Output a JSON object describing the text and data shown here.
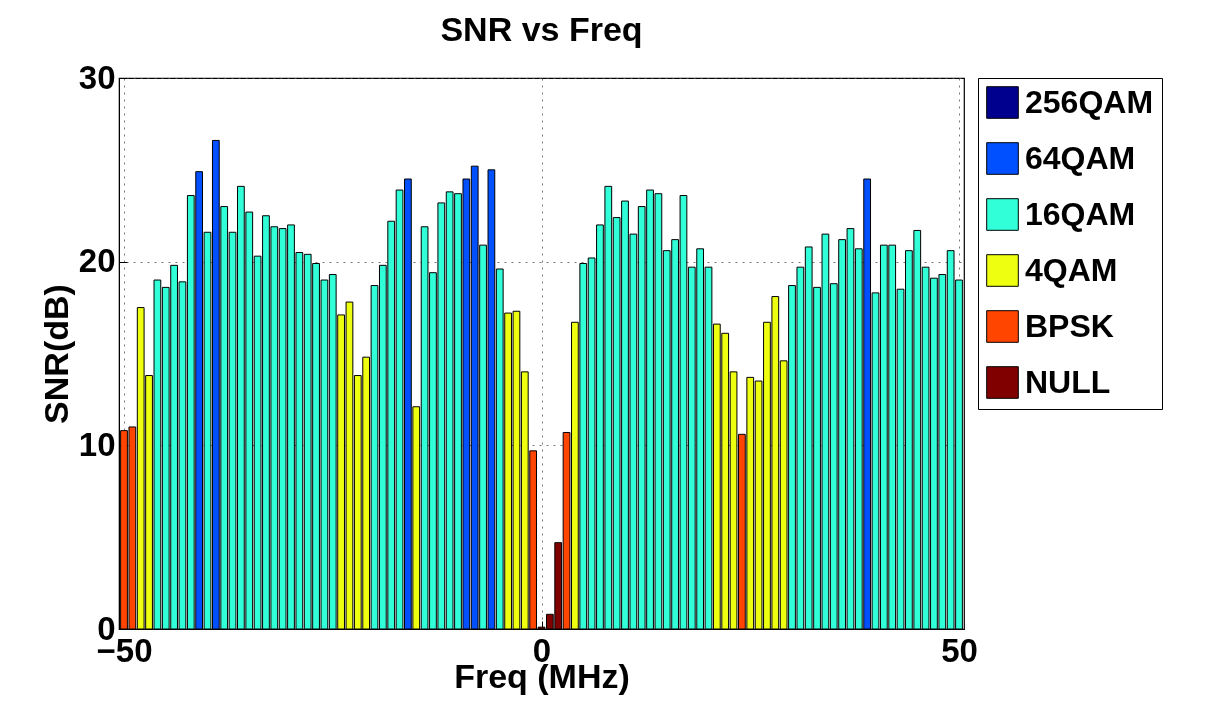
{
  "chart_data": {
    "type": "bar",
    "title": "SNR vs Freq",
    "xlabel": "Freq (MHz)",
    "ylabel": "SNR(dB)",
    "xlim": [
      -50,
      50
    ],
    "xticks": [
      -50,
      0,
      50
    ],
    "ylim": [
      0,
      30
    ],
    "yticks": [
      0,
      10,
      20,
      30
    ],
    "grid": true,
    "legend": "right",
    "series": [
      {
        "name": "256QAM",
        "color": "#00008f"
      },
      {
        "name": "64QAM",
        "color": "#0050ff",
        "x": [
          -41,
          -39,
          -16,
          -9,
          -8,
          -6,
          39
        ],
        "values": [
          24.9,
          26.6,
          24.5,
          24.5,
          25.2,
          25.0,
          24.5
        ]
      },
      {
        "name": "16QAM",
        "color": "#30ffd8",
        "x": [
          -46,
          -45,
          -44,
          -43,
          -42,
          -40,
          -38,
          -37,
          -36,
          -35,
          -34,
          -33,
          -32,
          -31,
          -30,
          -29,
          -28,
          -27,
          -26,
          -25,
          -20,
          -19,
          -18,
          -17,
          -14,
          -13,
          -12,
          -11,
          -10,
          -7,
          -5,
          5,
          6,
          7,
          8,
          9,
          10,
          11,
          12,
          13,
          14,
          15,
          16,
          17,
          18,
          19,
          20,
          30,
          31,
          32,
          33,
          34,
          35,
          36,
          37,
          38,
          40,
          41,
          42,
          43,
          44,
          45,
          46,
          47,
          48,
          49,
          50
        ],
        "values": [
          19.0,
          18.6,
          19.8,
          18.9,
          23.6,
          21.6,
          23.0,
          21.6,
          24.1,
          22.7,
          20.3,
          22.5,
          21.9,
          21.8,
          22.0,
          20.5,
          20.4,
          19.9,
          19.0,
          19.3,
          18.7,
          19.8,
          22.2,
          23.9,
          21.9,
          19.4,
          23.2,
          23.8,
          23.7,
          20.9,
          19.6,
          19.9,
          20.2,
          22.0,
          24.1,
          22.4,
          23.3,
          21.5,
          23.0,
          23.9,
          23.7,
          20.6,
          21.2,
          23.6,
          19.7,
          20.7,
          19.7,
          18.7,
          19.7,
          20.8,
          18.6,
          21.5,
          18.8,
          21.2,
          21.8,
          20.7,
          18.3,
          20.9,
          20.9,
          18.5,
          20.6,
          21.7,
          19.7,
          19.1,
          19.3,
          20.6,
          19.0
        ]
      },
      {
        "name": "4QAM",
        "color": "#eeff10",
        "x": [
          -48,
          -47,
          -24,
          -23,
          -22,
          -21,
          -15,
          -4,
          -3,
          -2,
          4,
          21,
          22,
          23,
          25,
          26,
          27,
          28,
          29
        ],
        "values": [
          17.5,
          13.8,
          17.1,
          17.8,
          13.8,
          14.8,
          12.1,
          17.2,
          17.3,
          14.0,
          16.7,
          16.6,
          16.1,
          14.0,
          13.7,
          13.5,
          16.7,
          18.1,
          14.6
        ]
      },
      {
        "name": "BPSK",
        "color": "#ff4500",
        "x": [
          -50,
          -49,
          -1,
          3,
          24
        ],
        "values": [
          10.8,
          11.0,
          9.7,
          10.7,
          10.6
        ]
      },
      {
        "name": "NULL",
        "color": "#800000",
        "x": [
          0,
          1,
          2
        ],
        "values": [
          0.1,
          0.8,
          4.7
        ]
      }
    ]
  }
}
